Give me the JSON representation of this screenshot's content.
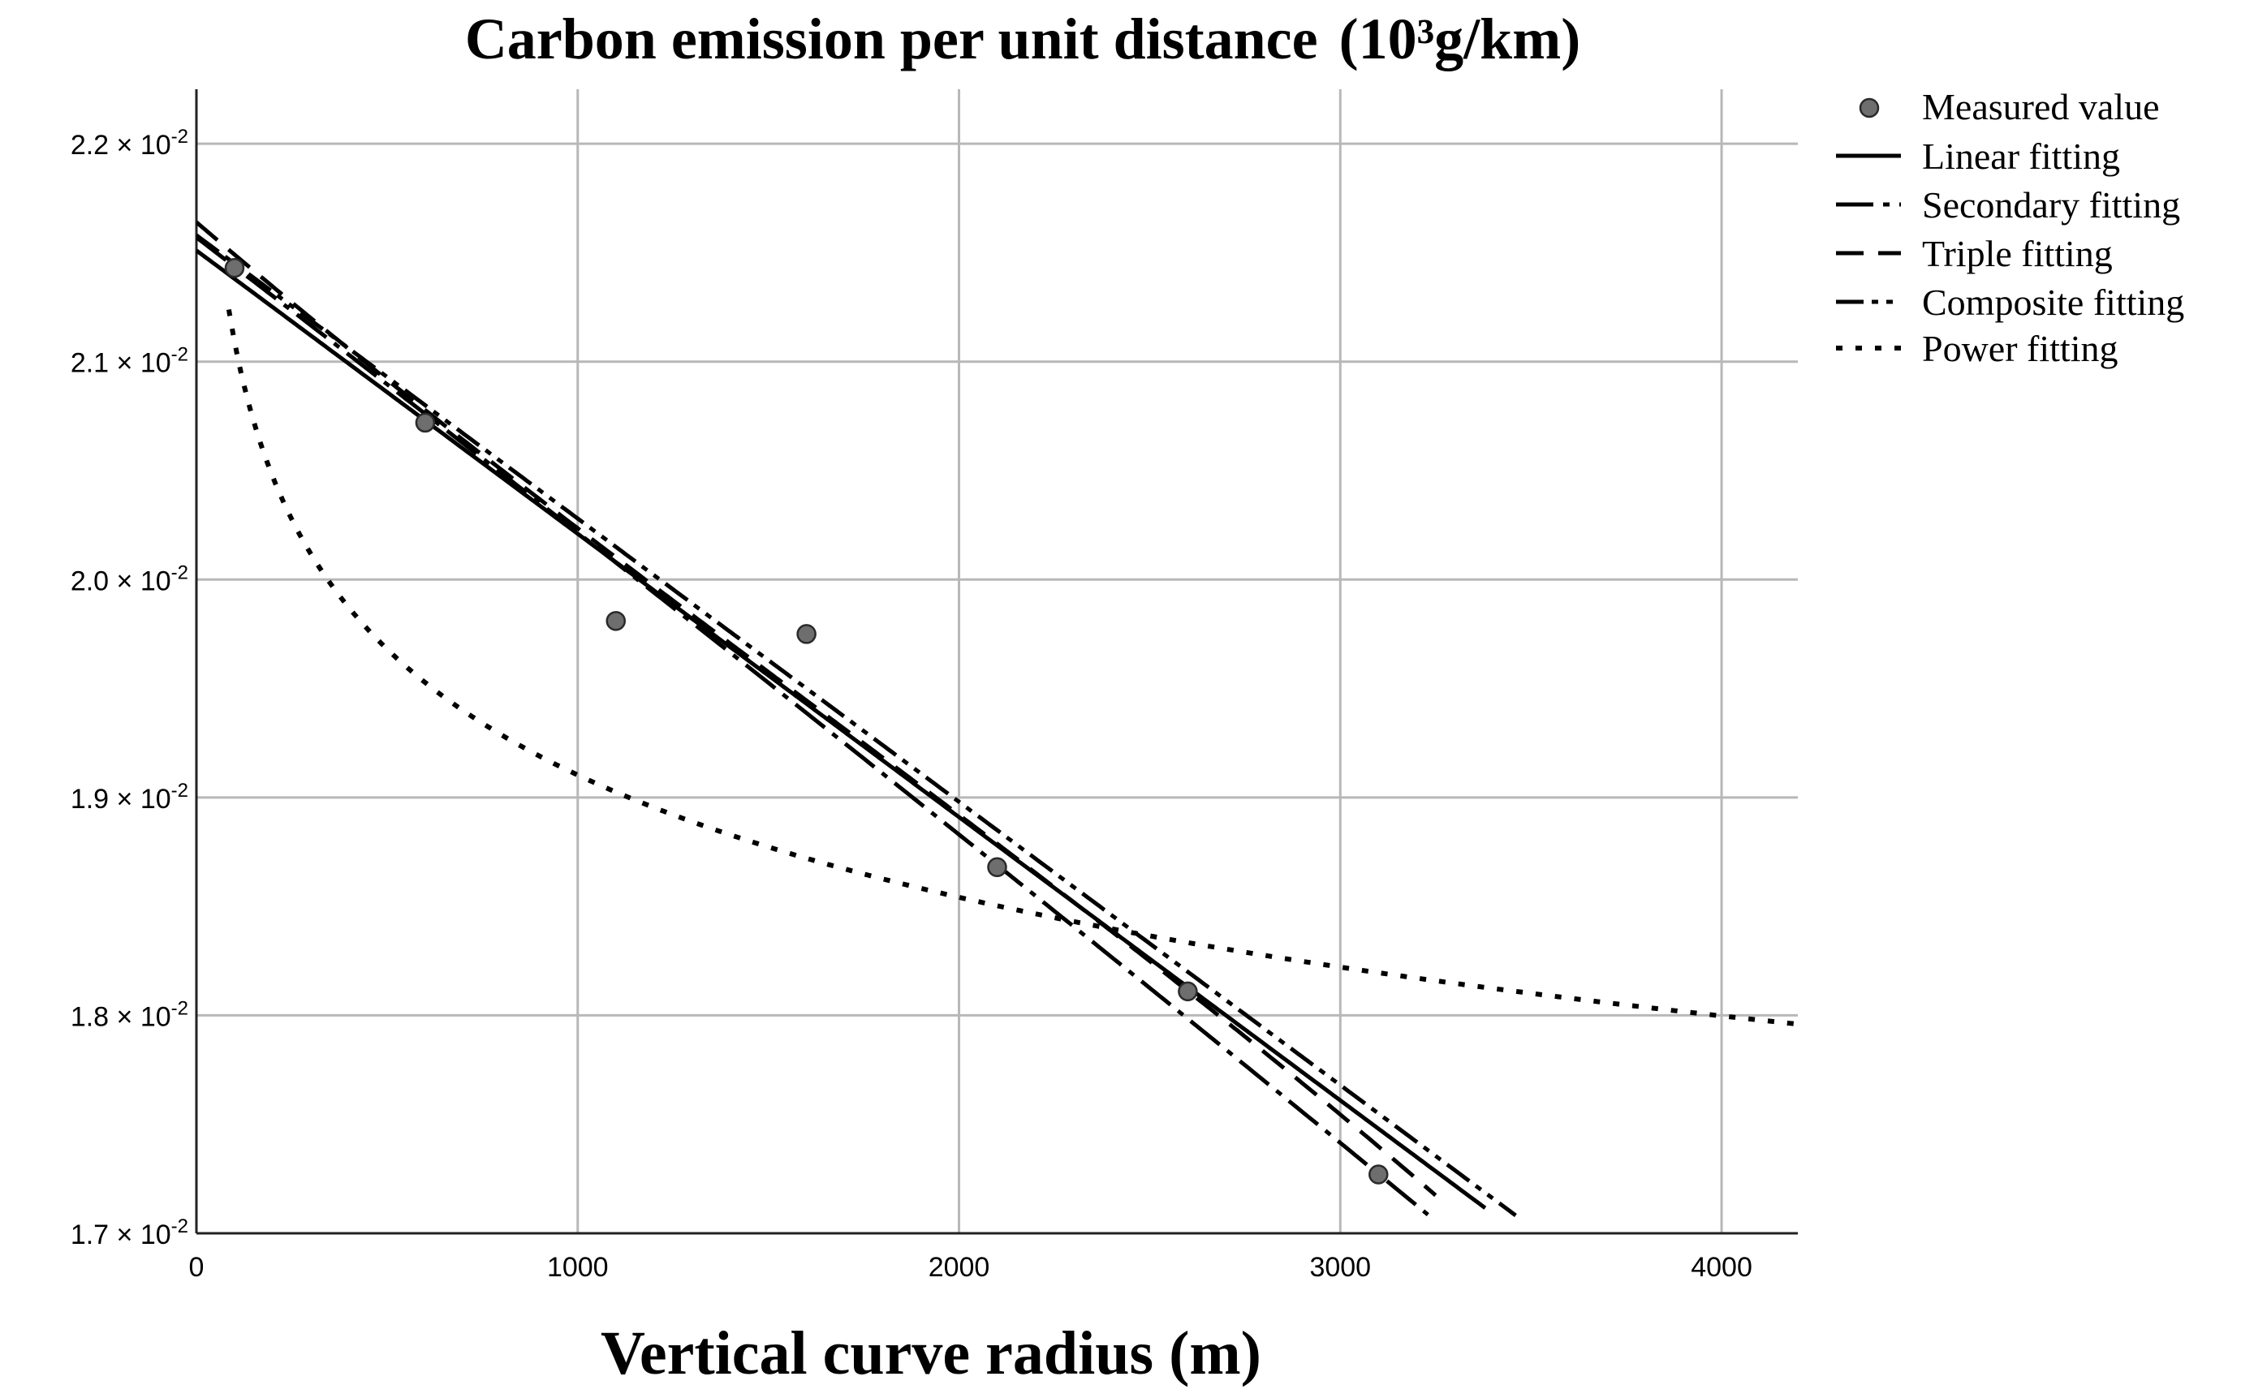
{
  "chart_data": {
    "type": "line",
    "title_main": "Carbon emission per unit distance",
    "title_unit": "(10³g/km)",
    "xlabel": "Vertical curve radius (m)",
    "ylabel": "",
    "xlim": [
      0,
      4200
    ],
    "ylim": [
      0.017,
      0.02225
    ],
    "x_ticks": [
      {
        "value": 0,
        "label": "0"
      },
      {
        "value": 1000,
        "label": "1000"
      },
      {
        "value": 2000,
        "label": "2000"
      },
      {
        "value": 3000,
        "label": "3000"
      },
      {
        "value": 4000,
        "label": "4000"
      }
    ],
    "y_ticks": [
      {
        "value": 0.017,
        "mantissa": "1.7",
        "base": "× 10",
        "exp": "-2"
      },
      {
        "value": 0.018,
        "mantissa": "1.8",
        "base": "× 10",
        "exp": "-2"
      },
      {
        "value": 0.019,
        "mantissa": "1.9",
        "base": "× 10",
        "exp": "-2"
      },
      {
        "value": 0.02,
        "mantissa": "2.0",
        "base": "× 10",
        "exp": "-2"
      },
      {
        "value": 0.021,
        "mantissa": "2.1",
        "base": "× 10",
        "exp": "-2"
      },
      {
        "value": 0.022,
        "mantissa": "2.2",
        "base": "× 10",
        "exp": "-2"
      }
    ],
    "grid": true,
    "legend_position": "right-top",
    "measured": {
      "name": "Measured value",
      "x": [
        100,
        600,
        1100,
        1600,
        2100,
        2600,
        3100
      ],
      "y": [
        0.02143,
        0.02072,
        0.01981,
        0.01975,
        0.01868,
        0.01811,
        0.01727
      ]
    },
    "series": [
      {
        "name": "Linear fitting",
        "dash": "solid",
        "x_range": [
          0,
          3380
        ],
        "intercept": 0.02151,
        "slope": -1.3e-06
      },
      {
        "name": "Secondary fitting",
        "dash": "dashdot",
        "x_range": [
          0,
          3230
        ],
        "a": 0.02157,
        "b": -1.34e-06,
        "c": -1.5e-11
      },
      {
        "name": "Triple fitting",
        "dash": "dash",
        "x_range": [
          0,
          3250
        ],
        "a": 0.02164,
        "b": -1.5e-06,
        "c": 1.2e-10,
        "d": -2.5e-14
      },
      {
        "name": "Composite fitting",
        "dash": "dashdotdot",
        "x_range": [
          0,
          3460
        ],
        "intercept": 0.02158,
        "slope": -1.3e-06
      },
      {
        "name": "Power fitting",
        "dash": "dotted",
        "x_range": [
          85,
          4200
        ],
        "coef": 0.02571,
        "exponent": -0.043
      }
    ]
  }
}
